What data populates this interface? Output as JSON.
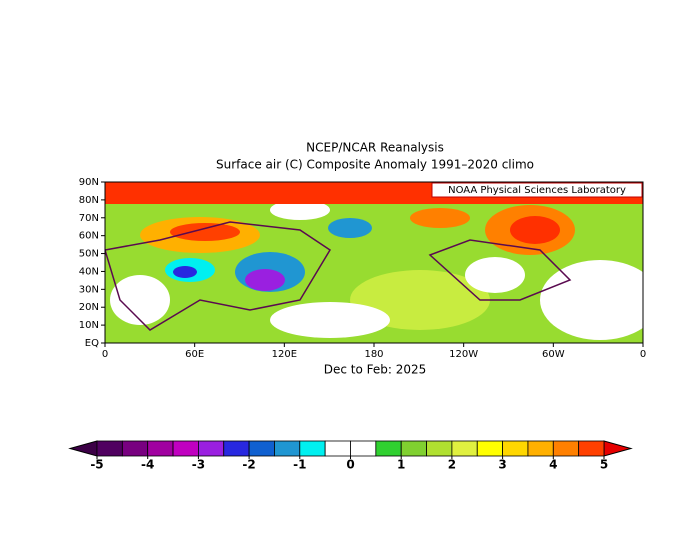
{
  "chart_data": {
    "type": "map",
    "title": "NCEP/NCAR Reanalysis",
    "subtitle": "Surface air (C) Composite Anomaly 1991–2020 climo",
    "annotation": "NOAA Physical Sciences Laboratory",
    "xlabel": "Dec to Feb: 2025",
    "xlim": [
      0,
      360
    ],
    "ylim": [
      0,
      90
    ],
    "xticks": [
      0,
      {
        "value": 60,
        "label": "60E"
      },
      {
        "value": 120,
        "label": "120E"
      },
      180,
      {
        "value": 240,
        "label": "120W"
      },
      {
        "value": 300,
        "label": "60W"
      },
      {
        "value": 360,
        "label": "0"
      }
    ],
    "yticks": [
      {
        "value": 0,
        "label": "EQ"
      },
      {
        "value": 10,
        "label": "10N"
      },
      {
        "value": 20,
        "label": "20N"
      },
      {
        "value": 30,
        "label": "30N"
      },
      {
        "value": 40,
        "label": "40N"
      },
      {
        "value": 50,
        "label": "50N"
      },
      {
        "value": 60,
        "label": "60N"
      },
      {
        "value": 70,
        "label": "70N"
      },
      {
        "value": 80,
        "label": "80N"
      },
      {
        "value": 90,
        "label": "90N"
      }
    ],
    "colorbar": {
      "lim": [
        -5,
        5
      ],
      "ticks": [
        -5,
        -4,
        -3,
        -2,
        -1,
        0,
        1,
        2,
        3,
        4,
        5
      ],
      "under_color": "#3c0046",
      "over_color": "#e60000",
      "colors": [
        "#500060",
        "#780080",
        "#a000a0",
        "#c000c0",
        "#9a20e0",
        "#2828e0",
        "#1060d0",
        "#2096d2",
        "#00f0f0",
        "#ffffff",
        "#ffffff",
        "#30d030",
        "#80d030",
        "#b0e030",
        "#e0f040",
        "#ffff00",
        "#ffd700",
        "#ffb000",
        "#ff8000",
        "#ff4000"
      ]
    }
  }
}
